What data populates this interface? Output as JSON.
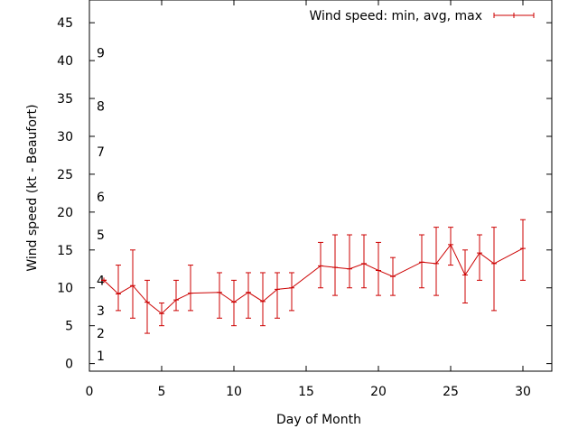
{
  "chart_data": {
    "type": "line",
    "title": "",
    "xlabel": "Day of Month",
    "ylabel": "Wind speed (kt - Beaufort)",
    "xlim": [
      0,
      32
    ],
    "ylim": [
      -1,
      48
    ],
    "x_ticks": [
      0,
      5,
      10,
      15,
      20,
      25,
      30
    ],
    "y_ticks": [
      0,
      5,
      10,
      15,
      20,
      25,
      30,
      35,
      40,
      45
    ],
    "grid": false,
    "legend_position": "top-right",
    "beaufort_labels": [
      {
        "label": "1",
        "y": 1
      },
      {
        "label": "2",
        "y": 4
      },
      {
        "label": "3",
        "y": 7
      },
      {
        "label": "4",
        "y": 11
      },
      {
        "label": "5",
        "y": 17
      },
      {
        "label": "6",
        "y": 22
      },
      {
        "label": "7",
        "y": 28
      },
      {
        "label": "8",
        "y": 34
      },
      {
        "label": "9",
        "y": 41
      }
    ],
    "series": [
      {
        "name": "Wind speed: min, avg, max",
        "color": "#cc0000",
        "x": [
          1,
          2,
          3,
          4,
          5,
          6,
          7,
          9,
          10,
          11,
          12,
          13,
          14,
          16,
          17,
          18,
          19,
          20,
          21,
          23,
          24,
          25,
          26,
          27,
          28,
          30
        ],
        "min": [
          11,
          7,
          6,
          4,
          5,
          7,
          7,
          6,
          5,
          6,
          5,
          6,
          7,
          10,
          9,
          10,
          10,
          9,
          9,
          10,
          9,
          13,
          8,
          11,
          7,
          11
        ],
        "avg": [
          11,
          9.2,
          10.3,
          8.1,
          6.6,
          8.4,
          9.3,
          9.4,
          8.1,
          9.4,
          8.2,
          9.8,
          10,
          12.9,
          12.7,
          12.5,
          13.2,
          12.3,
          11.5,
          13.4,
          13.2,
          15.7,
          11.7,
          14.6,
          13.2,
          15.2
        ],
        "max": [
          11,
          13,
          15,
          11,
          8,
          11,
          13,
          12,
          11,
          12,
          12,
          12,
          12,
          16,
          17,
          17,
          17,
          16,
          14,
          17,
          18,
          18,
          15,
          17,
          18,
          19
        ]
      }
    ]
  }
}
